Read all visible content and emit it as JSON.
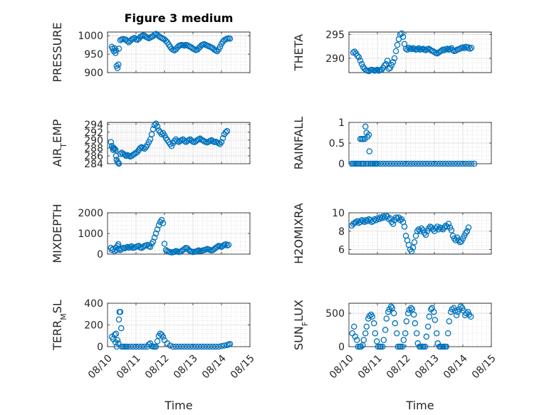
{
  "chart_data": [
    {
      "type": "scatter",
      "title": "Figure 3 medium",
      "ylabel": "PRESSURE",
      "xlim": [
        0,
        5
      ],
      "ylim": [
        900,
        1010
      ],
      "yticks": [
        900,
        950,
        1000
      ],
      "x": [
        0.15,
        0.18,
        0.22,
        0.25,
        0.28,
        0.3,
        0.32,
        0.35,
        0.38,
        0.4,
        0.45,
        0.5,
        0.55,
        0.6,
        0.65,
        0.7,
        0.75,
        0.8,
        0.85,
        0.9,
        0.95,
        1.0,
        1.05,
        1.1,
        1.15,
        1.2,
        1.25,
        1.3,
        1.35,
        1.4,
        1.45,
        1.5,
        1.55,
        1.6,
        1.65,
        1.7,
        1.75,
        1.8,
        1.85,
        1.9,
        1.95,
        2.0,
        2.05,
        2.1,
        2.15,
        2.2,
        2.25,
        2.3,
        2.35,
        2.4,
        2.45,
        2.5,
        2.55,
        2.6,
        2.65,
        2.7,
        2.75,
        2.8,
        2.85,
        2.9,
        2.95,
        3.0,
        3.05,
        3.1,
        3.15,
        3.2,
        3.25,
        3.3,
        3.35,
        3.4,
        3.45,
        3.5,
        3.55,
        3.6,
        3.65,
        3.7,
        3.75,
        3.8,
        3.85,
        3.9,
        3.95,
        4.0,
        4.05,
        4.1,
        4.15,
        4.2,
        4.25,
        4.3
      ],
      "y": [
        970,
        965,
        958,
        966,
        953,
        960,
        918,
        912,
        922,
        965,
        988,
        990,
        991,
        990,
        989,
        985,
        982,
        986,
        990,
        992,
        994,
        990,
        989,
        992,
        997,
        999,
        1001,
        1000,
        997,
        995,
        993,
        995,
        997,
        999,
        1003,
        1005,
        1002,
        999,
        996,
        994,
        992,
        990,
        986,
        982,
        976,
        970,
        965,
        962,
        960,
        963,
        968,
        972,
        974,
        975,
        974,
        973,
        975,
        974,
        972,
        970,
        968,
        965,
        963,
        961,
        962,
        966,
        970,
        974,
        976,
        977,
        975,
        973,
        972,
        970,
        968,
        966,
        962,
        960,
        958,
        963,
        970,
        978,
        984,
        988,
        990,
        992,
        993,
        992
      ]
    },
    {
      "type": "scatter",
      "ylabel": "THETA",
      "xlim": [
        0,
        5
      ],
      "ylim": [
        287,
        295.5
      ],
      "yticks": [
        290,
        295
      ],
      "x": [
        0.15,
        0.2,
        0.25,
        0.3,
        0.35,
        0.4,
        0.45,
        0.5,
        0.55,
        0.6,
        0.65,
        0.7,
        0.75,
        0.8,
        0.85,
        0.9,
        0.95,
        1.0,
        1.05,
        1.1,
        1.15,
        1.2,
        1.25,
        1.3,
        1.35,
        1.4,
        1.45,
        1.5,
        1.55,
        1.6,
        1.65,
        1.7,
        1.75,
        1.8,
        1.85,
        1.9,
        1.95,
        2.0,
        2.05,
        2.1,
        2.15,
        2.2,
        2.25,
        2.3,
        2.35,
        2.4,
        2.45,
        2.5,
        2.55,
        2.6,
        2.65,
        2.7,
        2.75,
        2.8,
        2.85,
        2.9,
        2.95,
        3.0,
        3.05,
        3.1,
        3.15,
        3.2,
        3.25,
        3.3,
        3.35,
        3.4,
        3.45,
        3.5,
        3.55,
        3.6,
        3.65,
        3.7,
        3.75,
        3.8,
        3.85,
        3.9,
        3.95,
        4.0,
        4.05,
        4.1,
        4.15,
        4.2,
        4.25,
        4.3
      ],
      "y": [
        291.2,
        291.4,
        291.0,
        290.5,
        290.2,
        289.5,
        288.8,
        288.2,
        287.8,
        287.5,
        287.4,
        287.3,
        287.5,
        287.6,
        287.5,
        287.4,
        287.5,
        287.6,
        287.4,
        287.5,
        287.6,
        288.0,
        288.5,
        288.8,
        289.5,
        287.8,
        288.0,
        288.6,
        289.2,
        290.0,
        291.5,
        292.8,
        294.0,
        295.0,
        295.2,
        294.5,
        293.0,
        292.0,
        291.8,
        292.2,
        292.0,
        291.9,
        292.1,
        292.0,
        291.8,
        291.9,
        292.1,
        291.8,
        291.9,
        292.0,
        291.8,
        291.7,
        291.9,
        292.0,
        291.8,
        291.6,
        291.5,
        291.3,
        291.1,
        291.0,
        291.2,
        291.4,
        291.6,
        291.8,
        291.7,
        291.9,
        292.0,
        291.8,
        291.9,
        292.1,
        291.7,
        291.5,
        291.6,
        291.8,
        291.9,
        292.0,
        292.2,
        292.3,
        292.1,
        292.4,
        292.2,
        292.3,
        292.0,
        292.2
      ]
    },
    {
      "type": "scatter",
      "ylabel": "AIR_TEMP",
      "xlim": [
        0,
        5
      ],
      "ylim": [
        284,
        294.5
      ],
      "yticks": [
        284,
        286,
        288,
        290,
        292,
        294
      ],
      "x": [
        0.12,
        0.15,
        0.18,
        0.2,
        0.22,
        0.25,
        0.28,
        0.3,
        0.32,
        0.35,
        0.38,
        0.4,
        0.45,
        0.5,
        0.55,
        0.6,
        0.65,
        0.7,
        0.75,
        0.8,
        0.85,
        0.9,
        0.95,
        1.0,
        1.05,
        1.1,
        1.15,
        1.2,
        1.25,
        1.3,
        1.35,
        1.4,
        1.45,
        1.5,
        1.55,
        1.6,
        1.65,
        1.7,
        1.75,
        1.8,
        1.85,
        1.9,
        1.95,
        2.0,
        2.05,
        2.1,
        2.15,
        2.2,
        2.25,
        2.3,
        2.35,
        2.4,
        2.45,
        2.5,
        2.55,
        2.6,
        2.65,
        2.7,
        2.75,
        2.8,
        2.85,
        2.9,
        2.95,
        3.0,
        3.05,
        3.1,
        3.15,
        3.2,
        3.25,
        3.3,
        3.35,
        3.4,
        3.45,
        3.5,
        3.55,
        3.6,
        3.65,
        3.7,
        3.75,
        3.8,
        3.85,
        3.9,
        3.95,
        4.0,
        4.05,
        4.1,
        4.15,
        4.2
      ],
      "y": [
        289.5,
        288.5,
        288.0,
        287.5,
        288.0,
        287.8,
        287.5,
        286.0,
        285.0,
        284.5,
        284.2,
        284.0,
        286.5,
        286.8,
        286.5,
        286.3,
        286.0,
        286.2,
        286.0,
        285.8,
        286.0,
        286.3,
        286.5,
        286.8,
        287.0,
        287.5,
        288.0,
        288.2,
        288.0,
        287.8,
        288.2,
        288.8,
        289.5,
        290.2,
        291.5,
        292.8,
        293.8,
        294.2,
        293.5,
        292.5,
        292.0,
        291.5,
        291.8,
        291.2,
        290.5,
        290.0,
        289.5,
        289.0,
        288.5,
        289.2,
        289.8,
        290.2,
        289.8,
        289.5,
        289.8,
        290.0,
        290.2,
        289.8,
        289.5,
        289.8,
        290.0,
        290.2,
        289.9,
        289.6,
        289.5,
        289.7,
        290.0,
        290.2,
        290.4,
        290.1,
        289.9,
        289.7,
        289.5,
        289.4,
        289.6,
        289.8,
        290.0,
        289.7,
        289.5,
        289.6,
        289.4,
        289.2,
        289.0,
        289.5,
        290.5,
        291.5,
        292.0,
        292.3
      ]
    },
    {
      "type": "scatter",
      "ylabel": "RAINFALL",
      "xlim": [
        0,
        5
      ],
      "ylim": [
        0,
        1
      ],
      "yticks": [
        0,
        0.5,
        1
      ],
      "x": [
        0.1,
        0.15,
        0.2,
        0.25,
        0.3,
        0.35,
        0.4,
        0.42,
        0.45,
        0.48,
        0.5,
        0.52,
        0.55,
        0.58,
        0.6,
        0.62,
        0.65,
        0.68,
        0.7,
        0.72,
        0.75,
        0.8,
        0.85,
        0.9,
        0.95,
        1.0,
        1.1,
        1.2,
        1.3,
        1.4,
        1.5,
        1.6,
        1.7,
        1.8,
        1.9,
        2.0,
        2.1,
        2.2,
        2.3,
        2.4,
        2.5,
        2.6,
        2.7,
        2.8,
        2.9,
        3.0,
        3.1,
        3.2,
        3.3,
        3.4,
        3.5,
        3.6,
        3.7,
        3.8,
        3.9,
        4.0,
        4.1,
        4.2,
        4.3,
        4.4
      ],
      "y": [
        0,
        0,
        0,
        0,
        0,
        0,
        0.6,
        0,
        0.6,
        0,
        0.6,
        0,
        0.6,
        0.9,
        0,
        0.75,
        0.65,
        0,
        0.7,
        0.3,
        0,
        0,
        0,
        0,
        0,
        0,
        0,
        0,
        0,
        0,
        0,
        0,
        0,
        0,
        0,
        0,
        0,
        0,
        0,
        0,
        0,
        0,
        0,
        0,
        0,
        0,
        0,
        0,
        0,
        0,
        0,
        0,
        0,
        0,
        0,
        0,
        0,
        0,
        0,
        0
      ]
    },
    {
      "type": "scatter",
      "ylabel": "MIXDEPTH",
      "xlim": [
        0,
        5
      ],
      "ylim": [
        0,
        2000
      ],
      "yticks": [
        0,
        1000,
        2000
      ],
      "x": [
        0.12,
        0.15,
        0.2,
        0.25,
        0.3,
        0.32,
        0.35,
        0.38,
        0.4,
        0.45,
        0.5,
        0.55,
        0.6,
        0.65,
        0.7,
        0.75,
        0.8,
        0.85,
        0.9,
        0.95,
        1.0,
        1.05,
        1.1,
        1.15,
        1.2,
        1.25,
        1.3,
        1.35,
        1.4,
        1.45,
        1.5,
        1.55,
        1.6,
        1.65,
        1.7,
        1.75,
        1.8,
        1.85,
        1.9,
        1.95,
        2.0,
        2.05,
        2.1,
        2.15,
        2.2,
        2.25,
        2.3,
        2.35,
        2.4,
        2.45,
        2.5,
        2.55,
        2.6,
        2.65,
        2.7,
        2.75,
        2.8,
        2.85,
        2.9,
        2.95,
        3.0,
        3.05,
        3.1,
        3.15,
        3.2,
        3.25,
        3.3,
        3.35,
        3.4,
        3.45,
        3.5,
        3.55,
        3.6,
        3.65,
        3.7,
        3.75,
        3.8,
        3.85,
        3.9,
        3.95,
        4.0,
        4.05,
        4.1,
        4.15,
        4.2,
        4.25
      ],
      "y": [
        300,
        200,
        250,
        150,
        320,
        200,
        400,
        480,
        250,
        200,
        250,
        300,
        280,
        320,
        350,
        300,
        350,
        380,
        300,
        320,
        350,
        380,
        400,
        320,
        300,
        350,
        400,
        420,
        450,
        380,
        350,
        500,
        600,
        800,
        1000,
        1200,
        1400,
        1550,
        1650,
        1500,
        500,
        200,
        150,
        120,
        100,
        80,
        90,
        110,
        150,
        130,
        100,
        120,
        150,
        200,
        250,
        300,
        280,
        200,
        150,
        120,
        100,
        110,
        130,
        150,
        180,
        150,
        160,
        180,
        200,
        220,
        250,
        230,
        200,
        180,
        200,
        250,
        300,
        350,
        400,
        380,
        350,
        400,
        450,
        480,
        420,
        450
      ]
    },
    {
      "type": "scatter",
      "ylabel": "H2OMIXRA",
      "xlim": [
        0,
        5
      ],
      "ylim": [
        5.5,
        10
      ],
      "yticks": [
        6,
        8,
        10
      ],
      "x": [
        0.1,
        0.15,
        0.2,
        0.25,
        0.3,
        0.35,
        0.4,
        0.45,
        0.5,
        0.55,
        0.6,
        0.65,
        0.7,
        0.75,
        0.8,
        0.85,
        0.9,
        0.95,
        1.0,
        1.05,
        1.1,
        1.15,
        1.2,
        1.25,
        1.3,
        1.35,
        1.4,
        1.45,
        1.5,
        1.55,
        1.6,
        1.65,
        1.7,
        1.75,
        1.8,
        1.85,
        1.9,
        1.95,
        2.0,
        2.05,
        2.1,
        2.15,
        2.2,
        2.25,
        2.3,
        2.35,
        2.4,
        2.45,
        2.5,
        2.55,
        2.6,
        2.65,
        2.7,
        2.75,
        2.8,
        2.85,
        2.9,
        2.95,
        3.0,
        3.05,
        3.1,
        3.15,
        3.2,
        3.25,
        3.3,
        3.35,
        3.4,
        3.45,
        3.5,
        3.55,
        3.6,
        3.65,
        3.7,
        3.75,
        3.8,
        3.85,
        3.9,
        3.95,
        4.0,
        4.05,
        4.1,
        4.15,
        4.2
      ],
      "y": [
        8.6,
        8.8,
        8.9,
        9.0,
        9.1,
        8.9,
        9.0,
        9.2,
        9.1,
        9.0,
        9.2,
        9.1,
        9.3,
        9.2,
        9.0,
        9.1,
        9.3,
        9.2,
        9.4,
        9.3,
        9.5,
        9.4,
        9.6,
        9.5,
        9.7,
        9.6,
        9.3,
        9.4,
        9.0,
        8.8,
        9.2,
        9.5,
        9.4,
        9.5,
        9.2,
        9.3,
        9.0,
        8.5,
        7.5,
        7.0,
        6.5,
        6.0,
        5.8,
        6.2,
        6.8,
        7.5,
        8.0,
        8.2,
        8.0,
        8.3,
        8.1,
        7.8,
        7.6,
        8.0,
        8.3,
        8.5,
        8.4,
        8.2,
        8.0,
        8.3,
        8.5,
        8.2,
        8.4,
        8.3,
        8.2,
        8.4,
        8.6,
        8.5,
        8.8,
        8.4,
        8.1,
        7.5,
        7.2,
        7.0,
        7.3,
        7.0,
        6.8,
        6.9,
        7.2,
        7.5,
        7.8,
        8.0,
        8.4
      ]
    },
    {
      "type": "scatter",
      "ylabel": "TERR_MSL",
      "xlim": [
        0,
        5
      ],
      "ylim": [
        0,
        400
      ],
      "yticks": [
        0,
        200,
        400
      ],
      "x": [
        0.15,
        0.2,
        0.25,
        0.28,
        0.3,
        0.32,
        0.35,
        0.38,
        0.4,
        0.42,
        0.45,
        0.48,
        0.5,
        0.55,
        0.6,
        0.65,
        0.7,
        0.8,
        0.9,
        1.0,
        1.1,
        1.2,
        1.3,
        1.4,
        1.45,
        1.5,
        1.55,
        1.6,
        1.65,
        1.7,
        1.75,
        1.8,
        1.85,
        1.9,
        1.95,
        2.0,
        2.1,
        2.2,
        2.3,
        2.4,
        2.5,
        2.6,
        2.7,
        2.8,
        2.9,
        3.0,
        3.1,
        3.2,
        3.3,
        3.4,
        3.5,
        3.6,
        3.7,
        3.8,
        3.9,
        4.0,
        4.1,
        4.2,
        4.25,
        4.3
      ],
      "y": [
        90,
        70,
        110,
        40,
        120,
        0,
        60,
        30,
        250,
        320,
        320,
        170,
        0,
        0,
        0,
        0,
        0,
        0,
        0,
        0,
        0,
        0,
        0,
        0,
        20,
        30,
        5,
        0,
        0,
        0,
        50,
        100,
        120,
        110,
        90,
        60,
        30,
        10,
        0,
        0,
        0,
        0,
        0,
        0,
        0,
        0,
        0,
        0,
        0,
        0,
        0,
        0,
        0,
        0,
        0,
        5,
        10,
        15,
        20,
        25
      ]
    },
    {
      "type": "scatter",
      "ylabel": "SUN_FLUX",
      "xlim": [
        0,
        5
      ],
      "ylim": [
        0,
        650
      ],
      "yticks": [
        0,
        500
      ],
      "x": [
        0.12,
        0.18,
        0.22,
        0.28,
        0.32,
        0.38,
        0.42,
        0.48,
        0.52,
        0.58,
        0.62,
        0.68,
        0.72,
        0.78,
        0.82,
        0.88,
        0.92,
        0.98,
        1.02,
        1.08,
        1.12,
        1.18,
        1.22,
        1.28,
        1.32,
        1.38,
        1.42,
        1.48,
        1.52,
        1.58,
        1.62,
        1.68,
        1.72,
        1.78,
        1.82,
        1.88,
        1.92,
        1.98,
        2.02,
        2.08,
        2.12,
        2.18,
        2.22,
        2.28,
        2.32,
        2.38,
        2.42,
        2.48,
        2.52,
        2.58,
        2.62,
        2.68,
        2.72,
        2.78,
        2.82,
        2.88,
        2.92,
        2.98,
        3.02,
        3.08,
        3.12,
        3.18,
        3.22,
        3.28,
        3.32,
        3.38,
        3.42,
        3.48,
        3.52,
        3.58,
        3.62,
        3.68,
        3.72,
        3.78,
        3.82,
        3.88,
        3.92,
        3.98,
        4.02,
        4.08,
        4.12,
        4.18,
        4.22,
        4.28
      ],
      "y": [
        200,
        300,
        150,
        100,
        0,
        0,
        0,
        20,
        100,
        200,
        300,
        420,
        460,
        480,
        450,
        350,
        200,
        80,
        0,
        0,
        0,
        0,
        100,
        250,
        420,
        520,
        560,
        600,
        580,
        500,
        350,
        200,
        0,
        0,
        0,
        0,
        100,
        200,
        380,
        500,
        550,
        580,
        560,
        480,
        350,
        200,
        50,
        0,
        0,
        0,
        0,
        0,
        150,
        300,
        450,
        560,
        580,
        520,
        400,
        200,
        50,
        0,
        0,
        0,
        0,
        0,
        0,
        200,
        380,
        520,
        560,
        580,
        540,
        470,
        520,
        560,
        600,
        580,
        540,
        470,
        500,
        520,
        480,
        450
      ]
    }
  ],
  "xaxis": {
    "ticks": [
      "08/10",
      "08/11",
      "08/12",
      "08/13",
      "08/14",
      "08/15"
    ],
    "label": "Time"
  },
  "style": {
    "marker_color": "#0072BD"
  }
}
